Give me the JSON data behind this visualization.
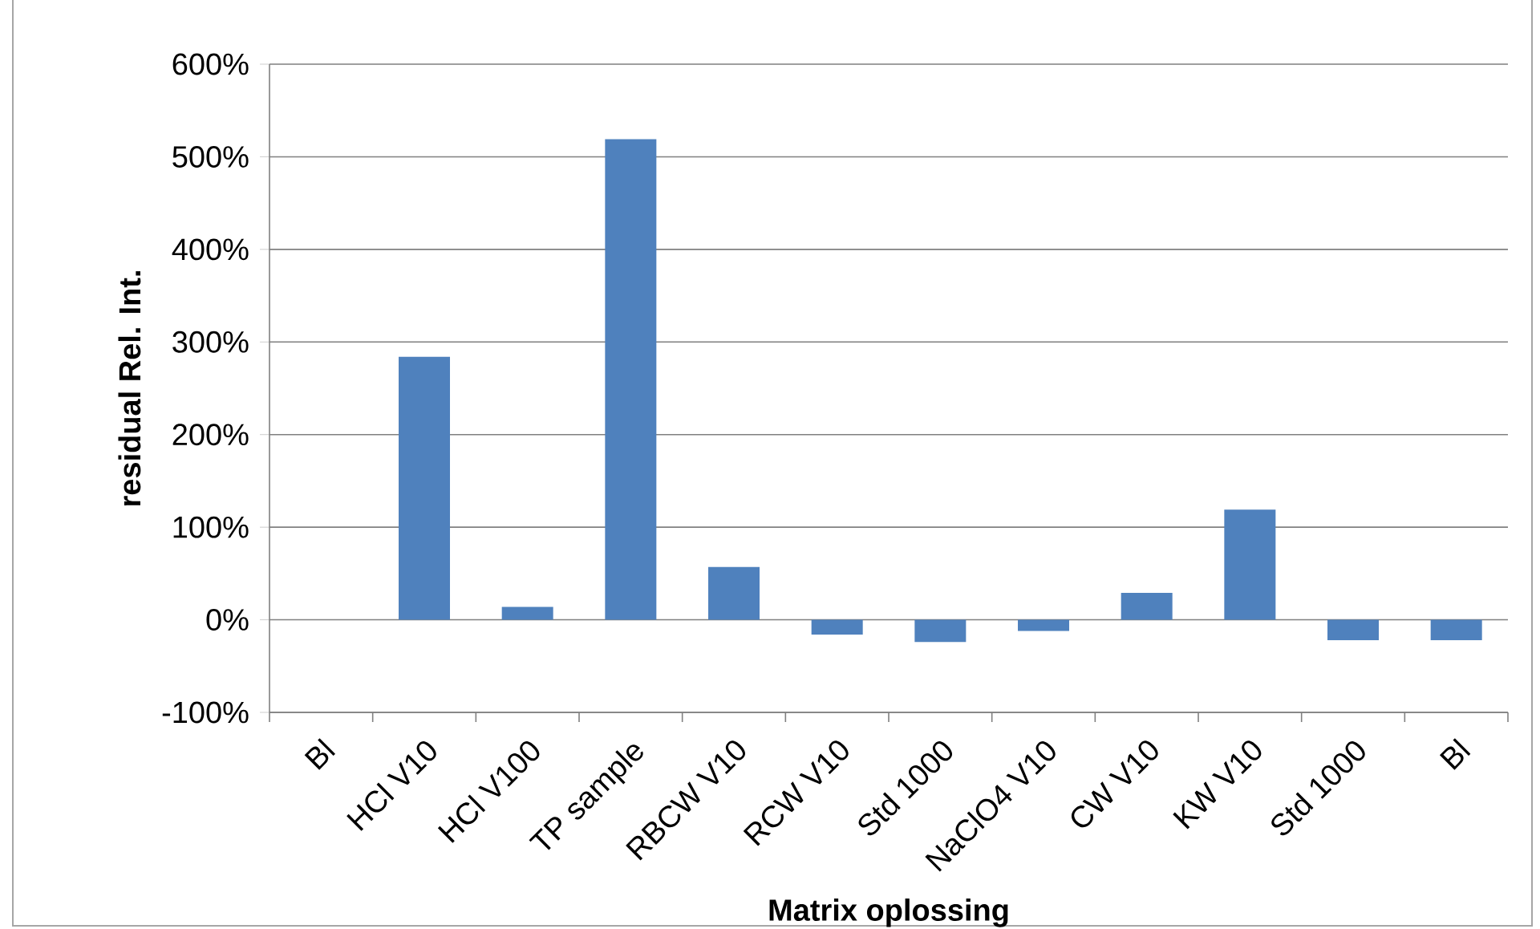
{
  "chart_data": {
    "type": "bar",
    "xlabel": "Matrix oplossing",
    "ylabel": "residual Rel. Int.",
    "categories": [
      "Bl",
      "HCl V10",
      "HCl V100",
      "TP sample",
      "RBCW V10",
      "RCW V10",
      "Std 1000",
      "NaClO4 V10",
      "CW V10",
      "KW V10",
      "Std 1000",
      "Bl"
    ],
    "values": [
      0,
      284,
      14,
      519,
      57,
      -16,
      -24,
      -12,
      29,
      119,
      -22,
      -22
    ],
    "color": "#4f81bd",
    "ylim": [
      -100,
      600
    ],
    "yticks": [
      {
        "value": -100,
        "label": "-100%"
      },
      {
        "value": 0,
        "label": "0%"
      },
      {
        "value": 100,
        "label": "100%"
      },
      {
        "value": 200,
        "label": "200%"
      },
      {
        "value": 300,
        "label": "300%"
      },
      {
        "value": 400,
        "label": "400%"
      },
      {
        "value": 500,
        "label": "500%"
      },
      {
        "value": 600,
        "label": "600%"
      }
    ],
    "grid": "y"
  }
}
